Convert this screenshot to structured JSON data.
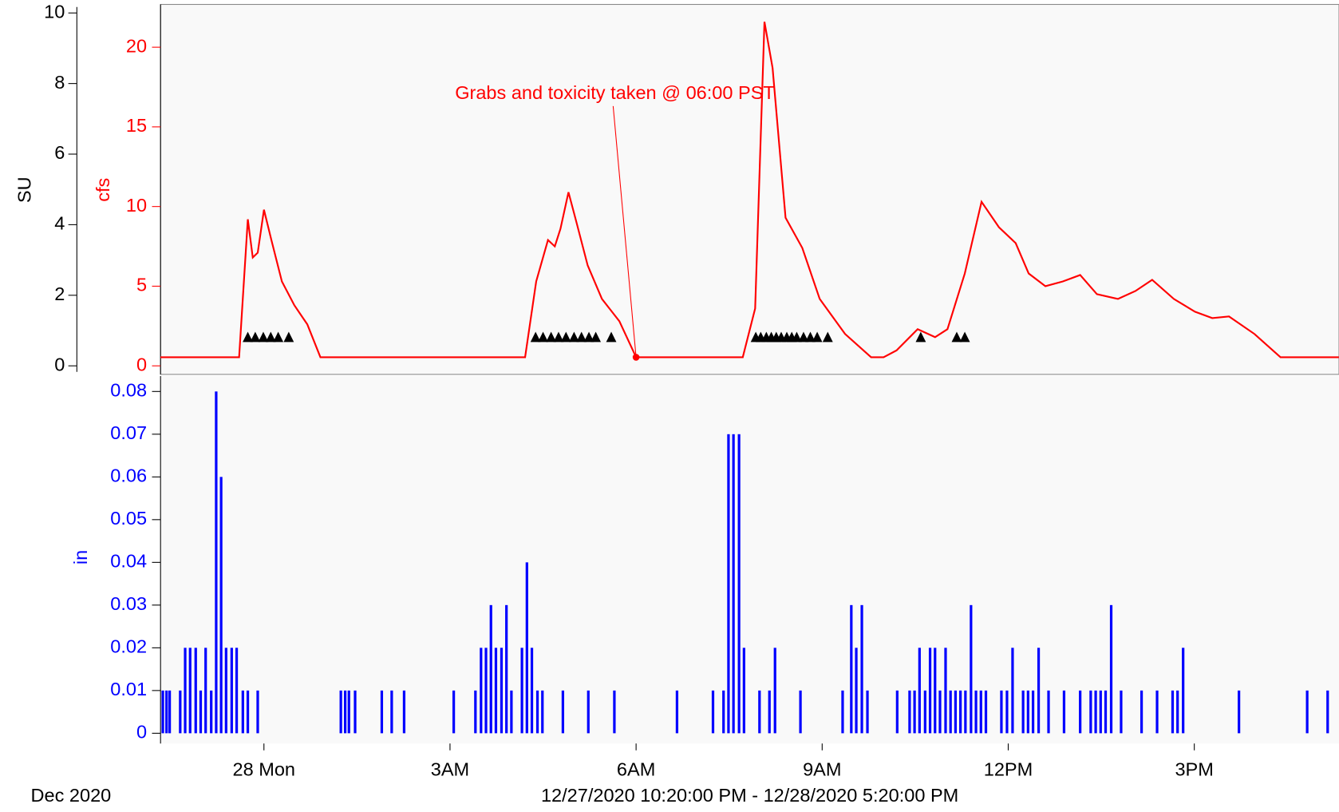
{
  "chart_data": [
    {
      "type": "line",
      "ylabel": "SU",
      "y2label": "cfs",
      "xlim": [
        22.333,
        41.333
      ],
      "ylim": [
        0,
        10
      ],
      "yticks": [
        0,
        2,
        4,
        6,
        8,
        10
      ],
      "y2lim": [
        0,
        22.15
      ],
      "y2ticks": [
        0,
        5,
        10,
        15,
        20
      ],
      "annotation": {
        "text": "Grabs and toxicity taken @ 06:00 PST",
        "x": 30.0,
        "y": 0.54
      },
      "series": [
        {
          "color": "#000000",
          "marker": "triangle",
          "axis": "y",
          "x": [
            23.74,
            23.86,
            23.99,
            24.11,
            24.23,
            24.4,
            28.38,
            28.5,
            28.63,
            28.75,
            28.87,
            29.0,
            29.12,
            29.24,
            29.35,
            29.6,
            31.93,
            32.01,
            32.1,
            32.18,
            32.26,
            32.34,
            32.43,
            32.51,
            32.59,
            32.7,
            32.81,
            32.92,
            33.09,
            34.59,
            35.17,
            35.3
          ],
          "values": [
            0.82,
            0.82,
            0.82,
            0.82,
            0.82,
            0.82,
            0.82,
            0.82,
            0.82,
            0.82,
            0.82,
            0.82,
            0.82,
            0.82,
            0.82,
            0.82,
            0.82,
            0.82,
            0.82,
            0.82,
            0.82,
            0.82,
            0.82,
            0.82,
            0.82,
            0.82,
            0.82,
            0.82,
            0.82,
            0.82,
            0.82,
            0.82
          ]
        },
        {
          "color": "#ff0000",
          "axis": "y2",
          "x": [
            22.33,
            23.6,
            23.74,
            23.82,
            23.9,
            24.0,
            24.12,
            24.29,
            24.49,
            24.7,
            24.91,
            28.21,
            28.39,
            28.58,
            28.69,
            28.78,
            28.91,
            29.04,
            29.22,
            29.45,
            29.73,
            30.0,
            31.72,
            31.92,
            32.07,
            32.2,
            32.41,
            32.68,
            32.96,
            33.37,
            33.79,
            33.99,
            34.2,
            34.54,
            34.82,
            35.02,
            35.3,
            35.57,
            35.85,
            36.12,
            36.33,
            36.6,
            36.88,
            37.16,
            37.43,
            37.77,
            38.05,
            38.32,
            38.67,
            39.01,
            39.29,
            39.56,
            39.97,
            40.39,
            41.33
          ],
          "values": [
            0.54,
            0.54,
            9.2,
            6.8,
            7.1,
            9.8,
            7.9,
            5.3,
            3.8,
            2.6,
            0.54,
            0.54,
            5.3,
            7.9,
            7.5,
            8.6,
            10.9,
            9.0,
            6.3,
            4.2,
            2.8,
            0.54,
            0.54,
            3.6,
            21.6,
            18.7,
            9.3,
            7.4,
            4.2,
            2.0,
            0.54,
            0.54,
            0.97,
            2.3,
            1.8,
            2.3,
            5.8,
            10.3,
            8.7,
            7.7,
            5.8,
            5.0,
            5.3,
            5.7,
            4.5,
            4.2,
            4.7,
            5.4,
            4.2,
            3.4,
            3.0,
            3.1,
            2.0,
            0.54,
            0.54
          ]
        }
      ]
    },
    {
      "type": "bar",
      "ylabel": "in",
      "color": "#0000ff",
      "date_label": "Dec 2020",
      "range_label": "12/27/2020 10:20:00 PM - 12/28/2020 5:20:00 PM",
      "xlim": [
        22.333,
        41.333
      ],
      "xticks": [
        {
          "value": 24,
          "label": "28 Mon"
        },
        {
          "value": 27,
          "label": "3AM"
        },
        {
          "value": 30,
          "label": "6AM"
        },
        {
          "value": 33,
          "label": "9AM"
        },
        {
          "value": 36,
          "label": "12PM"
        },
        {
          "value": 39,
          "label": "3PM"
        }
      ],
      "ylim": [
        0,
        0.0836
      ],
      "yticks": [
        0,
        0.01,
        0.02,
        0.03,
        0.04,
        0.05,
        0.06,
        0.07,
        0.08
      ],
      "x": [
        22.37,
        22.43,
        22.48,
        22.65,
        22.73,
        22.81,
        22.9,
        22.98,
        23.06,
        23.15,
        23.23,
        23.31,
        23.39,
        23.48,
        23.56,
        23.66,
        23.74,
        23.9,
        25.24,
        25.31,
        25.37,
        25.47,
        25.9,
        26.06,
        26.26,
        27.06,
        27.41,
        27.5,
        27.58,
        27.66,
        27.74,
        27.83,
        27.91,
        27.99,
        28.16,
        28.24,
        28.32,
        28.41,
        28.49,
        28.82,
        29.23,
        29.65,
        30.66,
        31.24,
        31.41,
        31.49,
        31.57,
        31.66,
        31.74,
        31.99,
        32.15,
        32.24,
        32.65,
        33.33,
        33.47,
        33.55,
        33.64,
        33.73,
        34.21,
        34.41,
        34.49,
        34.57,
        34.66,
        34.74,
        34.82,
        34.9,
        34.99,
        35.07,
        35.15,
        35.23,
        35.31,
        35.4,
        35.48,
        35.56,
        35.64,
        35.89,
        35.98,
        36.07,
        36.24,
        36.32,
        36.4,
        36.49,
        36.65,
        36.9,
        37.16,
        37.33,
        37.41,
        37.49,
        37.57,
        37.66,
        37.82,
        38.15,
        38.4,
        38.65,
        38.73,
        38.82,
        39.72,
        40.82,
        41.15
      ],
      "values": [
        0.01,
        0.01,
        0.01,
        0.01,
        0.02,
        0.02,
        0.02,
        0.01,
        0.02,
        0.01,
        0.08,
        0.06,
        0.02,
        0.02,
        0.02,
        0.01,
        0.01,
        0.01,
        0.01,
        0.01,
        0.01,
        0.01,
        0.01,
        0.01,
        0.01,
        0.01,
        0.01,
        0.02,
        0.02,
        0.03,
        0.02,
        0.02,
        0.03,
        0.01,
        0.02,
        0.04,
        0.02,
        0.01,
        0.01,
        0.01,
        0.01,
        0.01,
        0.01,
        0.01,
        0.01,
        0.07,
        0.07,
        0.07,
        0.02,
        0.01,
        0.01,
        0.02,
        0.01,
        0.01,
        0.03,
        0.02,
        0.03,
        0.01,
        0.01,
        0.01,
        0.01,
        0.02,
        0.01,
        0.02,
        0.02,
        0.01,
        0.02,
        0.01,
        0.01,
        0.01,
        0.01,
        0.03,
        0.01,
        0.01,
        0.01,
        0.01,
        0.01,
        0.02,
        0.01,
        0.01,
        0.01,
        0.02,
        0.01,
        0.01,
        0.01,
        0.01,
        0.01,
        0.01,
        0.01,
        0.03,
        0.01,
        0.01,
        0.01,
        0.01,
        0.01,
        0.02,
        0.01,
        0.01,
        0.01
      ]
    }
  ]
}
